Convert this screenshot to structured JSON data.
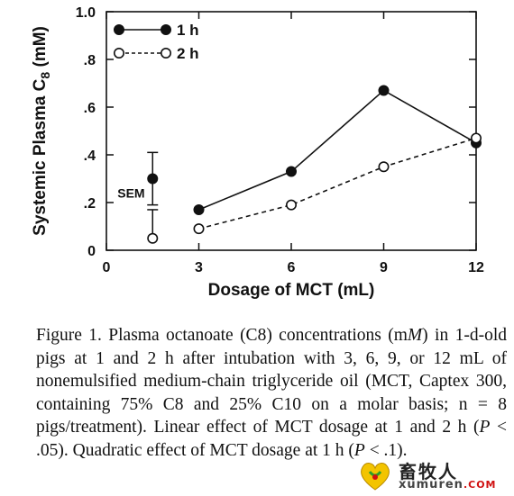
{
  "chart_data": {
    "type": "line",
    "x": [
      3,
      6,
      9,
      12
    ],
    "series": [
      {
        "name": "1 h",
        "values": [
          0.17,
          0.33,
          0.67,
          0.45
        ],
        "marker": "filled-circle",
        "line": "solid"
      },
      {
        "name": "2 h",
        "values": [
          0.09,
          0.19,
          0.35,
          0.47
        ],
        "marker": "open-circle",
        "line": "dashed"
      }
    ],
    "sem": {
      "label": "SEM",
      "x": 1.5,
      "ranges": [
        {
          "marker": "filled-circle",
          "value": 0.3,
          "low": 0.19,
          "high": 0.41
        },
        {
          "marker": "open-circle",
          "value": 0.05,
          "low": 0.05,
          "high": 0.17
        }
      ]
    },
    "xlabel": "Dosage of MCT (mL)",
    "ylabel_main": "Systemic Plasma C",
    "ylabel_sub": "8",
    "ylabel_unit": " (mM)",
    "xlim": [
      0,
      12
    ],
    "ylim": [
      0,
      1.0
    ],
    "xticks": [
      0,
      3,
      6,
      9,
      12
    ],
    "xtick_labels": [
      "0",
      "3",
      "6",
      "9",
      "12"
    ],
    "yticks": [
      0,
      0.2,
      0.4,
      0.6,
      0.8,
      1.0
    ],
    "ytick_labels": [
      "0",
      ".2",
      ".4",
      ".6",
      ".8",
      "1.0"
    ],
    "grid": false,
    "legend_position": "top-left",
    "colors": {
      "ink": "#111111"
    }
  },
  "caption": {
    "lines": [
      "Figure 1. Plasma octanoate (C8) concentrations (m",
      "in 1-d-old pigs at 1 and 2 h after intubation with 3, 6, 9,",
      "or 12 mL of nonemulsified medium-chain triglyceride",
      "oil (MCT, Captex 300, containing 75% C8 and 25% C10",
      "on a molar basis; n = 8 pigs/treatment). Linear effect of",
      "MCT dosage at 1 and 2 h (",
      " < .05). Quadratic effect of",
      "MCT dosage at 1 h (",
      " < .1)."
    ],
    "M": "M",
    "P": "P"
  },
  "watermark": {
    "cn": "畜牧人",
    "en": "xumuren",
    "dotcom": ".COM"
  }
}
